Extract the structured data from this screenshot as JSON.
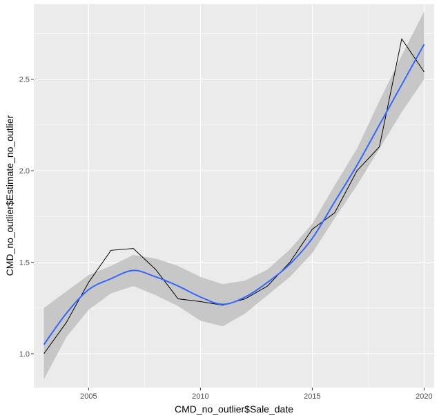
{
  "chart_data": {
    "type": "line",
    "title": "",
    "xlabel": "CMD_no_outlier$Sale_date",
    "ylabel": "CMD_no_outlier$Estimate_no_outlier",
    "xlim": [
      2002.55,
      2020.45
    ],
    "ylim": [
      0.815,
      2.91
    ],
    "x_ticks": [
      2005,
      2010,
      2015,
      2020
    ],
    "y_ticks": [
      1.0,
      1.5,
      2.0,
      2.5
    ],
    "x_tick_labels": [
      "2005",
      "2010",
      "2015",
      "2020"
    ],
    "y_tick_labels": [
      "1.0",
      "1.5",
      "2.0",
      "2.5"
    ],
    "grid": true,
    "legend": "none",
    "colors": {
      "panel_background": "#ebebeb",
      "grid": "#ffffff",
      "observed_line": "#000000",
      "smooth_line": "#3366ff",
      "confidence_band": "#c7c7c7"
    },
    "series": [
      {
        "kind": "observed",
        "x": [
          2003,
          2004,
          2005,
          2006,
          2007,
          2008,
          2009,
          2010,
          2011,
          2012,
          2013,
          2014,
          2015,
          2016,
          2017,
          2018,
          2019,
          2020
        ],
        "y": [
          1.0,
          1.17,
          1.39,
          1.565,
          1.575,
          1.46,
          1.3,
          1.285,
          1.265,
          1.3,
          1.37,
          1.5,
          1.68,
          1.77,
          2.0,
          2.13,
          2.72,
          2.54
        ]
      },
      {
        "kind": "smooth",
        "x": [
          2003,
          2004,
          2005,
          2006,
          2007,
          2008,
          2009,
          2010,
          2011,
          2012,
          2013,
          2014,
          2015,
          2016,
          2017,
          2018,
          2019,
          2020
        ],
        "y": [
          1.05,
          1.22,
          1.35,
          1.41,
          1.455,
          1.42,
          1.37,
          1.31,
          1.27,
          1.31,
          1.39,
          1.49,
          1.63,
          1.83,
          2.03,
          2.25,
          2.47,
          2.69
        ],
        "ci_lower": [
          0.86,
          1.09,
          1.24,
          1.33,
          1.37,
          1.32,
          1.26,
          1.18,
          1.15,
          1.22,
          1.32,
          1.42,
          1.55,
          1.74,
          1.92,
          2.12,
          2.32,
          2.5
        ],
        "ci_upper": [
          1.25,
          1.34,
          1.43,
          1.48,
          1.54,
          1.52,
          1.48,
          1.42,
          1.38,
          1.4,
          1.46,
          1.57,
          1.71,
          1.92,
          2.12,
          2.38,
          2.63,
          2.87
        ]
      }
    ]
  }
}
